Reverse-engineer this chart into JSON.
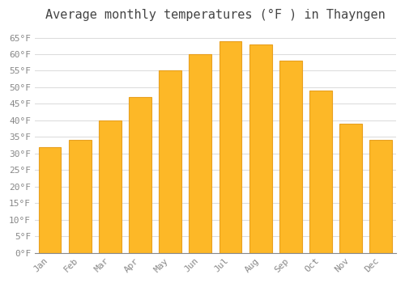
{
  "title": "Average monthly temperatures (°F ) in Thayngen",
  "months": [
    "Jan",
    "Feb",
    "Mar",
    "Apr",
    "May",
    "Jun",
    "Jul",
    "Aug",
    "Sep",
    "Oct",
    "Nov",
    "Dec"
  ],
  "values": [
    32,
    34,
    40,
    47,
    55,
    60,
    64,
    63,
    58,
    49,
    39,
    34
  ],
  "bar_color": "#FDB827",
  "bar_edge_color": "#E8A020",
  "ylim": [
    0,
    68
  ],
  "yticks": [
    0,
    5,
    10,
    15,
    20,
    25,
    30,
    35,
    40,
    45,
    50,
    55,
    60,
    65
  ],
  "ytick_labels": [
    "0°F",
    "5°F",
    "10°F",
    "15°F",
    "20°F",
    "25°F",
    "30°F",
    "35°F",
    "40°F",
    "45°F",
    "50°F",
    "55°F",
    "60°F",
    "65°F"
  ],
  "background_color": "#ffffff",
  "plot_bg_color": "#ffffff",
  "grid_color": "#dddddd",
  "tick_color": "#888888",
  "title_color": "#444444",
  "title_fontsize": 11,
  "tick_fontsize": 8,
  "font_family": "monospace"
}
